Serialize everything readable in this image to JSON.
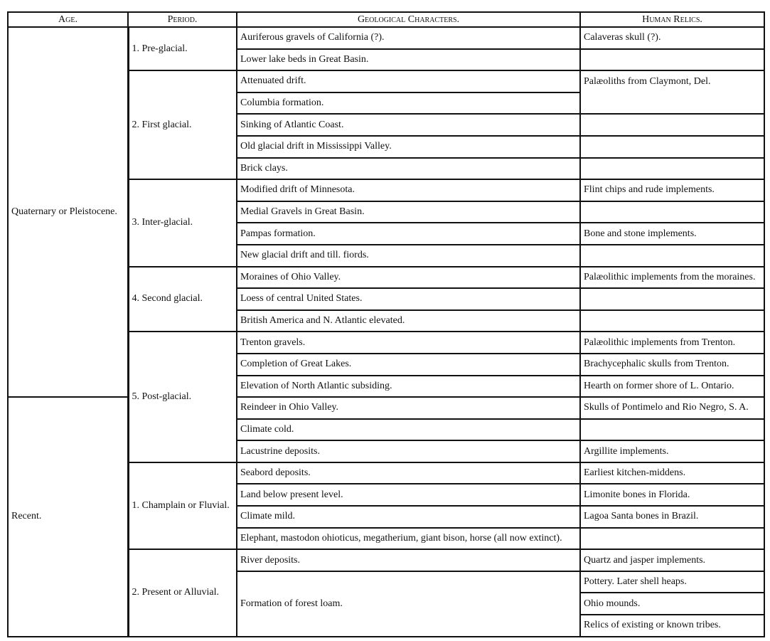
{
  "headers": [
    "Age.",
    "Period.",
    "Geological Characters.",
    "Human Relics."
  ],
  "ages": [
    "Quaternary or Pleistocene.",
    "Recent."
  ],
  "periods": [
    "1. Pre-glacial.",
    "2. First glacial.",
    "3. Inter-glacial.",
    "4. Second glacial.",
    "5. Post-glacial.",
    "1. Champlain or Fluvial.",
    "2. Present or Alluvial."
  ],
  "geological": [
    "Auriferous gravels of California (?).",
    "Lower lake beds in Great Basin.",
    "Attenuated drift.",
    "Columbia formation.",
    "Sinking of Atlantic Coast.",
    "Old glacial drift in Mississippi Valley.",
    "Brick clays.",
    "Modified drift of Minnesota.",
    "Medial Gravels in Great Basin.",
    "Pampas formation.",
    "New glacial drift and till. fiords.",
    "Moraines of Ohio Valley.",
    "Loess of central United States.",
    "British America and N. Atlantic elevated.",
    "Trenton gravels.",
    "Completion of Great Lakes.",
    "Elevation of North Atlantic subsiding.",
    "Reindeer in Ohio Valley.",
    "Climate cold.",
    "Lacustrine deposits.",
    "Seabord deposits.",
    "Land below present level.",
    "Climate mild.",
    "Elephant, mastodon ohioticus, megatherium, giant bison, horse (all now extinct).",
    "River deposits.",
    "Formation of forest loam."
  ],
  "relics": [
    "Calaveras skull (?).",
    "Palæoliths from Claymont, Del.",
    "Flint chips and rude implements.",
    "Bone and stone implements.",
    "Palæolithic implements from the moraines.",
    "Palæolithic implements from Trenton.",
    "Brachycephalic skulls from Trenton.",
    "Hearth on former shore of L. Ontario.",
    "Skulls of Pontimelo and Rio Negro, S. A.",
    "Argillite implements.",
    "Earliest kitchen-middens.",
    "Limonite bones in Florida.",
    "Lagoa Santa bones in Brazil.",
    "Quartz and jasper implements.",
    "Pottery. Later shell heaps.",
    "Ohio mounds.",
    "Relics of existing or known tribes."
  ]
}
